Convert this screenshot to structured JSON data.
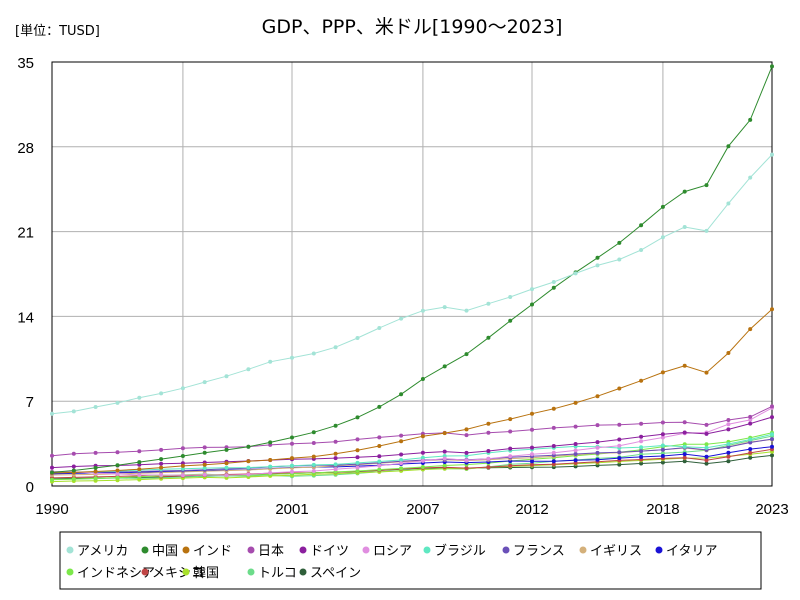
{
  "chart_data": {
    "type": "line",
    "title": "GDP、PPP、米ドル[1990～2023]",
    "unit_label": "[単位：TUSD]",
    "xlabel": "",
    "ylabel": "",
    "xlim": [
      1990,
      2023
    ],
    "ylim": [
      0,
      35
    ],
    "x_ticks": [
      1990,
      1996,
      2001,
      2007,
      2012,
      2018,
      2023
    ],
    "y_ticks": [
      0,
      7,
      14,
      21,
      28,
      35
    ],
    "grid": true,
    "legend_position": "bottom",
    "x": [
      1990,
      1991,
      1992,
      1993,
      1994,
      1995,
      1996,
      1997,
      1998,
      1999,
      2000,
      2001,
      2002,
      2003,
      2004,
      2005,
      2006,
      2007,
      2008,
      2009,
      2010,
      2011,
      2012,
      2013,
      2014,
      2015,
      2016,
      2017,
      2018,
      2019,
      2020,
      2021,
      2022,
      2023
    ],
    "series": [
      {
        "name": "アメリカ",
        "color": "#a3e3d6",
        "values": [
          5.96,
          6.16,
          6.52,
          6.86,
          7.29,
          7.64,
          8.07,
          8.58,
          9.06,
          9.63,
          10.25,
          10.58,
          10.94,
          11.46,
          12.22,
          13.04,
          13.82,
          14.47,
          14.77,
          14.48,
          15.05,
          15.6,
          16.25,
          16.84,
          17.55,
          18.21,
          18.7,
          19.48,
          20.53,
          21.38,
          21.06,
          23.32,
          25.46,
          27.36
        ]
      },
      {
        "name": "中国",
        "color": "#2e8b2e",
        "values": [
          1.12,
          1.28,
          1.49,
          1.72,
          1.97,
          2.22,
          2.48,
          2.74,
          2.98,
          3.24,
          3.6,
          4.0,
          4.43,
          4.98,
          5.66,
          6.53,
          7.57,
          8.83,
          9.87,
          10.89,
          12.23,
          13.64,
          14.98,
          16.36,
          17.63,
          18.84,
          20.07,
          21.53,
          23.04,
          24.3,
          24.84,
          28.05,
          30.22,
          34.64
        ]
      },
      {
        "name": "インド",
        "color": "#b8720f",
        "values": [
          1.08,
          1.12,
          1.2,
          1.28,
          1.39,
          1.52,
          1.66,
          1.76,
          1.88,
          2.04,
          2.15,
          2.3,
          2.43,
          2.66,
          2.95,
          3.3,
          3.7,
          4.11,
          4.37,
          4.67,
          5.14,
          5.52,
          5.97,
          6.37,
          6.86,
          7.41,
          8.05,
          8.69,
          9.38,
          9.92,
          9.36,
          10.98,
          12.95,
          14.59
        ]
      },
      {
        "name": "日本",
        "color": "#a64cae",
        "values": [
          2.5,
          2.66,
          2.73,
          2.79,
          2.87,
          2.98,
          3.11,
          3.19,
          3.2,
          3.24,
          3.39,
          3.48,
          3.55,
          3.66,
          3.85,
          4.01,
          4.16,
          4.32,
          4.38,
          4.2,
          4.4,
          4.5,
          4.65,
          4.8,
          4.9,
          5.03,
          5.05,
          5.14,
          5.24,
          5.26,
          5.04,
          5.45,
          5.7,
          6.57
        ]
      },
      {
        "name": "ドイツ",
        "color": "#8b1f9e",
        "values": [
          1.52,
          1.61,
          1.67,
          1.69,
          1.75,
          1.83,
          1.88,
          1.94,
          2.01,
          2.06,
          2.14,
          2.2,
          2.24,
          2.3,
          2.37,
          2.45,
          2.6,
          2.74,
          2.84,
          2.73,
          2.89,
          3.09,
          3.17,
          3.3,
          3.47,
          3.62,
          3.84,
          4.07,
          4.27,
          4.42,
          4.3,
          4.67,
          5.15,
          5.69
        ]
      },
      {
        "name": "ロシア",
        "color": "#e08ee0",
        "values": [
          1.2,
          1.17,
          1.06,
          1.0,
          0.91,
          0.91,
          0.89,
          0.93,
          0.88,
          0.95,
          1.08,
          1.17,
          1.24,
          1.38,
          1.52,
          1.67,
          1.87,
          2.07,
          2.27,
          2.12,
          2.25,
          2.45,
          2.62,
          2.74,
          2.94,
          3.16,
          3.33,
          3.69,
          4.0,
          4.35,
          4.42,
          5.1,
          5.46,
          6.45
        ]
      },
      {
        "name": "ブラジル",
        "color": "#5fe8c2",
        "values": [
          1.1,
          1.15,
          1.17,
          1.23,
          1.31,
          1.38,
          1.42,
          1.48,
          1.5,
          1.52,
          1.6,
          1.67,
          1.74,
          1.78,
          1.91,
          2.02,
          2.15,
          2.33,
          2.48,
          2.5,
          2.73,
          2.92,
          3.04,
          3.16,
          3.27,
          3.24,
          3.14,
          3.2,
          3.34,
          3.24,
          3.15,
          3.47,
          3.84,
          4.27
        ]
      },
      {
        "name": "フランス",
        "color": "#6a50b8",
        "values": [
          1.06,
          1.11,
          1.15,
          1.15,
          1.2,
          1.25,
          1.28,
          1.34,
          1.41,
          1.46,
          1.58,
          1.66,
          1.72,
          1.72,
          1.81,
          1.92,
          2.04,
          2.14,
          2.2,
          2.17,
          2.24,
          2.38,
          2.46,
          2.54,
          2.64,
          2.73,
          2.78,
          2.88,
          3.0,
          3.17,
          2.98,
          3.22,
          3.59,
          3.87
        ]
      },
      {
        "name": "イギリス",
        "color": "#d4b07a",
        "values": [
          0.91,
          0.93,
          0.96,
          1.0,
          1.06,
          1.11,
          1.16,
          1.22,
          1.27,
          1.32,
          1.41,
          1.49,
          1.56,
          1.66,
          1.76,
          1.88,
          2.01,
          2.1,
          2.16,
          2.1,
          2.16,
          2.26,
          2.34,
          2.46,
          2.58,
          2.7,
          2.74,
          2.88,
          3.0,
          3.14,
          2.95,
          3.24,
          3.63,
          3.84
        ]
      },
      {
        "name": "イタリア",
        "color": "#1a12d6",
        "values": [
          1.0,
          1.04,
          1.08,
          1.09,
          1.13,
          1.18,
          1.21,
          1.26,
          1.31,
          1.34,
          1.44,
          1.53,
          1.56,
          1.58,
          1.64,
          1.72,
          1.82,
          1.9,
          1.98,
          1.93,
          1.98,
          2.06,
          2.05,
          2.05,
          2.12,
          2.17,
          2.3,
          2.4,
          2.48,
          2.63,
          2.42,
          2.74,
          3.05,
          3.24
        ]
      },
      {
        "name": "インドネシア",
        "color": "#7ce84a",
        "values": [
          0.52,
          0.57,
          0.63,
          0.69,
          0.76,
          0.84,
          0.92,
          0.98,
          0.88,
          0.89,
          0.96,
          1.02,
          1.08,
          1.16,
          1.24,
          1.35,
          1.45,
          1.57,
          1.69,
          1.77,
          1.89,
          2.06,
          2.2,
          2.34,
          2.49,
          2.64,
          2.79,
          2.99,
          3.24,
          3.44,
          3.44,
          3.64,
          3.99,
          4.39
        ]
      },
      {
        "name": "メキシコ",
        "color": "#c04545",
        "values": [
          0.67,
          0.71,
          0.75,
          0.79,
          0.83,
          0.78,
          0.84,
          0.9,
          0.95,
          0.99,
          1.06,
          1.08,
          1.1,
          1.14,
          1.22,
          1.3,
          1.41,
          1.49,
          1.55,
          1.48,
          1.56,
          1.67,
          1.76,
          1.8,
          1.9,
          2.0,
          2.11,
          2.19,
          2.28,
          2.34,
          2.13,
          2.42,
          2.73,
          3.03
        ]
      },
      {
        "name": "韓国",
        "color": "#a8e02a",
        "values": [
          0.36,
          0.41,
          0.44,
          0.48,
          0.53,
          0.6,
          0.65,
          0.71,
          0.67,
          0.74,
          0.83,
          0.88,
          0.97,
          1.02,
          1.09,
          1.16,
          1.25,
          1.36,
          1.42,
          1.44,
          1.55,
          1.62,
          1.68,
          1.76,
          1.84,
          1.92,
          2.02,
          2.11,
          2.2,
          2.3,
          2.31,
          2.46,
          2.62,
          2.82
        ]
      },
      {
        "name": "トルコ",
        "color": "#6cdc8a",
        "values": [
          0.55,
          0.57,
          0.61,
          0.66,
          0.63,
          0.68,
          0.74,
          0.8,
          0.83,
          0.81,
          0.87,
          0.81,
          0.86,
          0.93,
          1.04,
          1.17,
          1.28,
          1.38,
          1.44,
          1.4,
          1.58,
          1.79,
          1.88,
          2.05,
          2.15,
          2.28,
          2.37,
          2.62,
          2.71,
          2.8,
          2.95,
          3.35,
          3.75,
          4.12
        ]
      },
      {
        "name": "スペイン",
        "color": "#2f5f3a",
        "values": [
          0.6,
          0.63,
          0.65,
          0.67,
          0.7,
          0.73,
          0.76,
          0.8,
          0.85,
          0.9,
          0.97,
          1.03,
          1.09,
          1.13,
          1.19,
          1.28,
          1.38,
          1.46,
          1.51,
          1.47,
          1.5,
          1.53,
          1.54,
          1.56,
          1.62,
          1.7,
          1.77,
          1.86,
          1.94,
          2.04,
          1.85,
          2.05,
          2.33,
          2.53
        ]
      }
    ]
  }
}
